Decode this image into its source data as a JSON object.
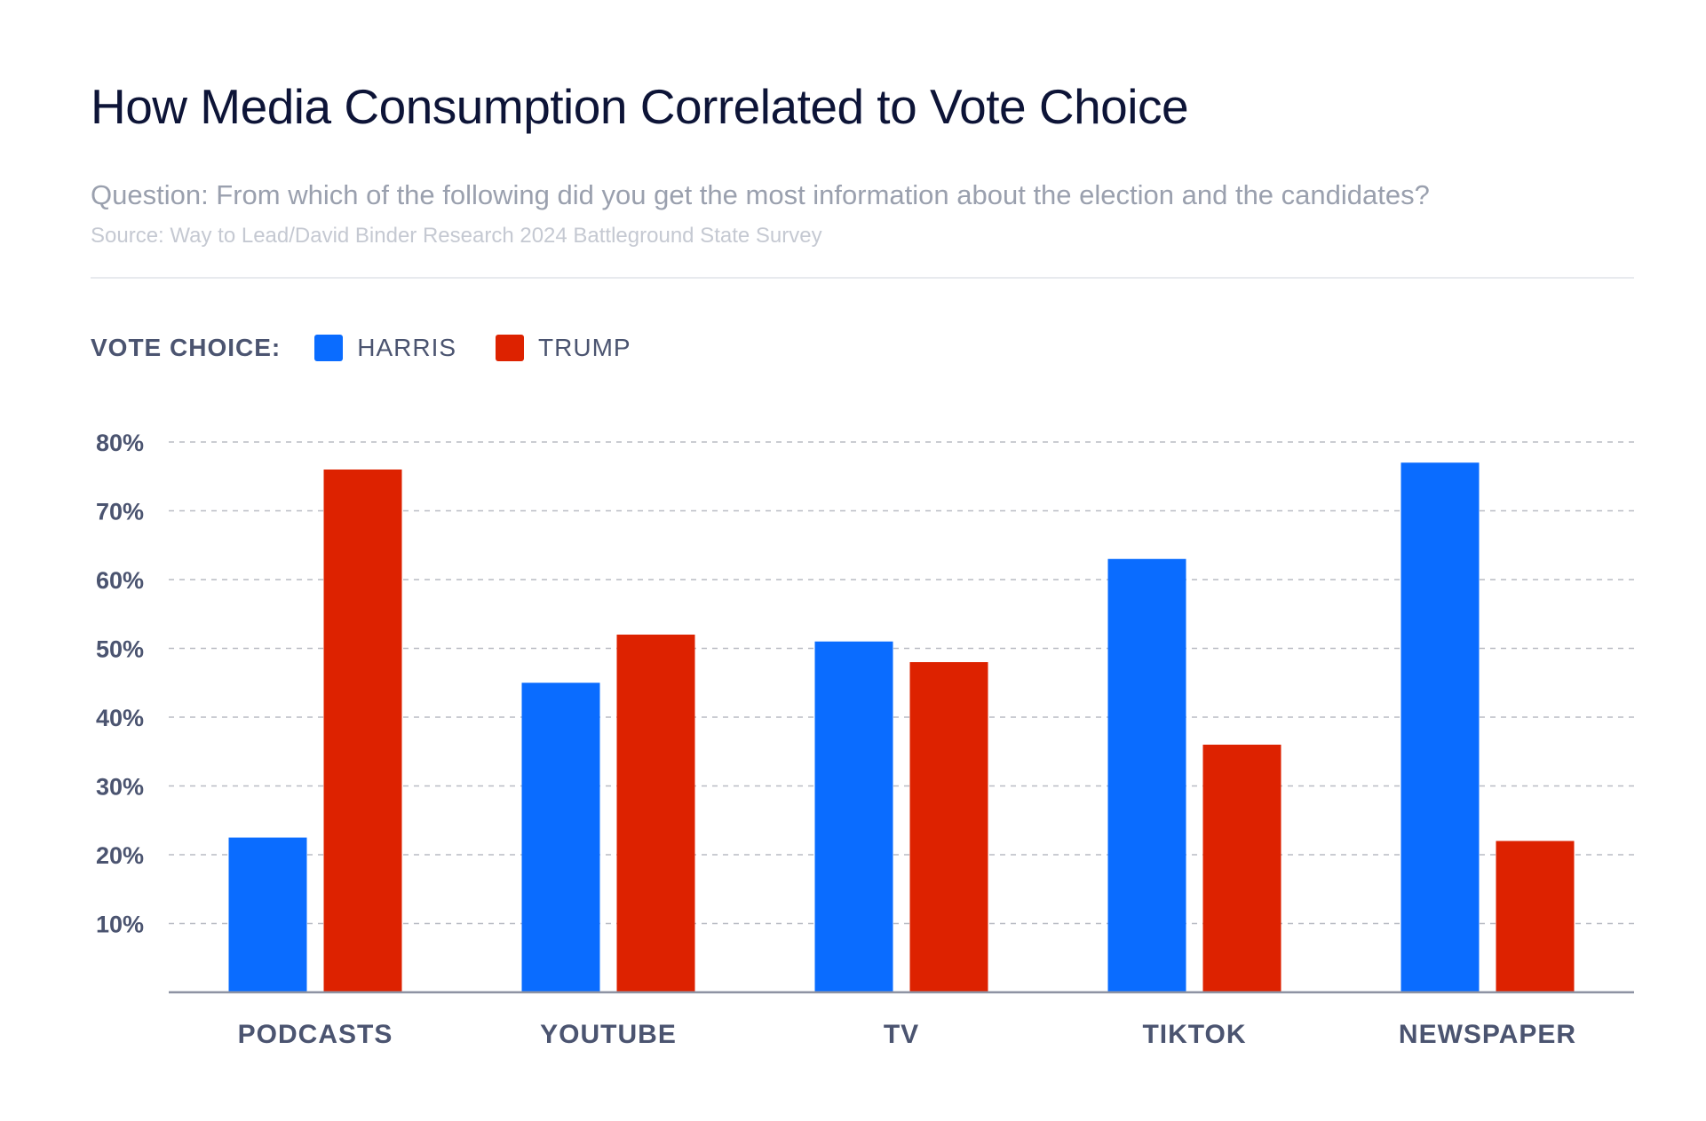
{
  "header": {
    "title": "How Media Consumption Correlated to Vote Choice",
    "subtitle": "Question: From which of the following did you get the most information about the election and the candidates?",
    "source": "Source: Way to Lead/David Binder Research 2024 Battleground State Survey"
  },
  "legend": {
    "title": "VOTE CHOICE:",
    "items": [
      {
        "label": "HARRIS",
        "color": "#0a6cff"
      },
      {
        "label": "TRUMP",
        "color": "#dd2200"
      }
    ]
  },
  "chart_data": {
    "type": "bar",
    "categories": [
      "PODCASTS",
      "YOUTUBE",
      "TV",
      "TIKTOK",
      "NEWSPAPER"
    ],
    "series": [
      {
        "name": "HARRIS",
        "color": "#0a6cff",
        "values": [
          22.5,
          45,
          51,
          63,
          77
        ]
      },
      {
        "name": "TRUMP",
        "color": "#dd2200",
        "values": [
          76,
          52,
          48,
          36,
          22
        ]
      }
    ],
    "yticks": [
      10,
      20,
      30,
      40,
      50,
      60,
      70,
      80
    ],
    "ytick_labels": [
      "10%",
      "20%",
      "30%",
      "40%",
      "50%",
      "60%",
      "70%",
      "80%"
    ],
    "ylim": [
      0,
      80
    ],
    "grid": true,
    "legend_position": "top-left",
    "title": "How Media Consumption Correlated to Vote Choice",
    "xlabel": "",
    "ylabel": ""
  }
}
